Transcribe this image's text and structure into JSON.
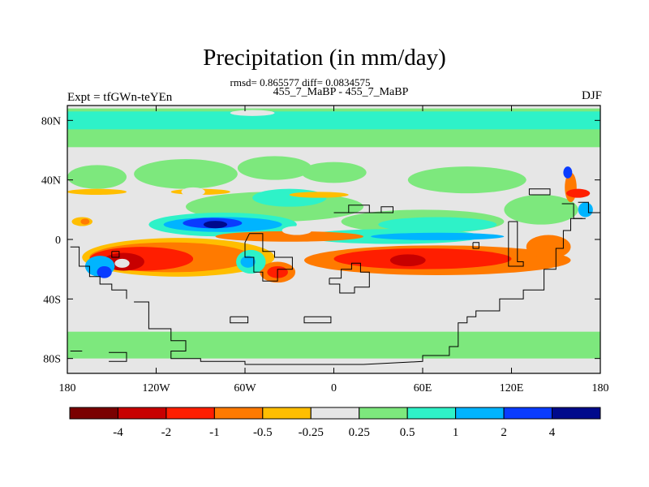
{
  "title": "Precipitation (in mm/day)",
  "stats_line": "rmsd= 0.865577 diff= 0.0834575",
  "case_line": "455_7_MaBP - 455_7_MaBP",
  "left_label": "Expt = tfGWn-teYEn",
  "right_label": "DJF",
  "chart_data": {
    "type": "heatmap",
    "title": "Precipitation (in mm/day)",
    "xlim": [
      -180,
      180
    ],
    "ylim": [
      -90,
      90
    ],
    "x_ticks": [
      {
        "value": -180,
        "label": "180"
      },
      {
        "value": -120,
        "label": "120W"
      },
      {
        "value": -60,
        "label": "60W"
      },
      {
        "value": 0,
        "label": "0"
      },
      {
        "value": 60,
        "label": "60E"
      },
      {
        "value": 120,
        "label": "120E"
      },
      {
        "value": 180,
        "label": "180"
      }
    ],
    "y_ticks": [
      {
        "value": 80,
        "label": "80N"
      },
      {
        "value": 40,
        "label": "40N"
      },
      {
        "value": 0,
        "label": "0"
      },
      {
        "value": -40,
        "label": "40S"
      },
      {
        "value": -80,
        "label": "80S"
      }
    ],
    "colorbar": {
      "levels": [
        -4,
        -2,
        -1,
        -0.5,
        -0.25,
        0.25,
        0.5,
        1,
        2,
        4
      ],
      "labels": [
        "-4",
        "-2",
        "-1",
        "-0.5",
        "-0.25",
        "0.25",
        "0.5",
        "1",
        "2",
        "4"
      ],
      "colors": [
        "#7a0000",
        "#c80000",
        "#ff1e00",
        "#ff7a00",
        "#ffbe00",
        "#e6e6e6",
        "#7de87d",
        "#2ef2c8",
        "#00b4ff",
        "#0a3cff",
        "#000a8c"
      ]
    },
    "regions": [
      {
        "class": 6,
        "shape": "band",
        "lat": [
          62,
          88
        ]
      },
      {
        "class": 7,
        "shape": "band",
        "lat": [
          74,
          86
        ]
      },
      {
        "class": 6,
        "shape": "band",
        "lat": [
          -80,
          -62
        ]
      },
      {
        "class": 6,
        "shape": "ellipse",
        "lon": -160,
        "lat": 42,
        "rlon": 20,
        "rlat": 8
      },
      {
        "class": 6,
        "shape": "ellipse",
        "lon": -100,
        "lat": 44,
        "rlon": 35,
        "rlat": 10
      },
      {
        "class": 6,
        "shape": "ellipse",
        "lon": -40,
        "lat": 48,
        "rlon": 25,
        "rlat": 8
      },
      {
        "class": 6,
        "shape": "ellipse",
        "lon": 0,
        "lat": 45,
        "rlon": 22,
        "rlat": 7
      },
      {
        "class": 6,
        "shape": "ellipse",
        "lon": 90,
        "lat": 40,
        "rlon": 40,
        "rlat": 9
      },
      {
        "class": 6,
        "shape": "ellipse",
        "lon": -40,
        "lat": 22,
        "rlon": 60,
        "rlat": 10
      },
      {
        "class": 7,
        "shape": "ellipse",
        "lon": -30,
        "lat": 28,
        "rlon": 25,
        "rlat": 6
      },
      {
        "class": 6,
        "shape": "ellipse",
        "lon": 60,
        "lat": 12,
        "rlon": 55,
        "rlat": 8
      },
      {
        "class": 7,
        "shape": "ellipse",
        "lon": 70,
        "lat": 10,
        "rlon": 40,
        "rlat": 5
      },
      {
        "class": 6,
        "shape": "ellipse",
        "lon": 140,
        "lat": 20,
        "rlon": 25,
        "rlat": 10
      },
      {
        "class": 7,
        "shape": "ellipse",
        "lon": -75,
        "lat": 10,
        "rlon": 50,
        "rlat": 8
      },
      {
        "class": 8,
        "shape": "ellipse",
        "lon": -75,
        "lat": 10,
        "rlon": 40,
        "rlat": 5
      },
      {
        "class": 9,
        "shape": "ellipse",
        "lon": -82,
        "lat": 11,
        "rlon": 20,
        "rlat": 3.5
      },
      {
        "class": 10,
        "shape": "ellipse",
        "lon": -80,
        "lat": 10,
        "rlon": 8,
        "rlat": 2.5
      },
      {
        "class": 7,
        "shape": "ellipse",
        "lon": 40,
        "lat": 2,
        "rlon": 60,
        "rlat": 5
      },
      {
        "class": 8,
        "shape": "ellipse",
        "lon": 70,
        "lat": 2,
        "rlon": 45,
        "rlat": 2.5
      },
      {
        "class": 4,
        "shape": "ellipse",
        "lon": -105,
        "lat": -12,
        "rlon": 65,
        "rlat": 13
      },
      {
        "class": 3,
        "shape": "ellipse",
        "lon": -110,
        "lat": -12,
        "rlon": 55,
        "rlat": 10
      },
      {
        "class": 2,
        "shape": "ellipse",
        "lon": -130,
        "lat": -13,
        "rlon": 35,
        "rlat": 8
      },
      {
        "class": 1,
        "shape": "ellipse",
        "lon": -142,
        "lat": -15,
        "rlon": 14,
        "rlat": 6
      },
      {
        "class": 5,
        "shape": "ellipse",
        "lon": -143,
        "lat": -16,
        "rlon": 5,
        "rlat": 3
      },
      {
        "class": 8,
        "shape": "ellipse",
        "lon": -158,
        "lat": -18,
        "rlon": 10,
        "rlat": 7
      },
      {
        "class": 9,
        "shape": "ellipse",
        "lon": -155,
        "lat": -22,
        "rlon": 5,
        "rlat": 4
      },
      {
        "class": 3,
        "shape": "ellipse",
        "lon": -30,
        "lat": 2,
        "rlon": 50,
        "rlat": 3.5
      },
      {
        "class": 3,
        "shape": "ellipse",
        "lon": -38,
        "lat": -22,
        "rlon": 12,
        "rlat": 7
      },
      {
        "class": 2,
        "shape": "ellipse",
        "lon": -38,
        "lat": -22,
        "rlon": 7,
        "rlat": 4
      },
      {
        "class": 7,
        "shape": "ellipse",
        "lon": -56,
        "lat": -15,
        "rlon": 10,
        "rlat": 8
      },
      {
        "class": 8,
        "shape": "ellipse",
        "lon": -58,
        "lat": -15,
        "rlon": 5,
        "rlat": 4
      },
      {
        "class": 3,
        "shape": "ellipse",
        "lon": 70,
        "lat": -14,
        "rlon": 90,
        "rlat": 10
      },
      {
        "class": 2,
        "shape": "ellipse",
        "lon": 60,
        "lat": -13,
        "rlon": 60,
        "rlat": 7
      },
      {
        "class": 1,
        "shape": "ellipse",
        "lon": 50,
        "lat": -14,
        "rlon": 12,
        "rlat": 4
      },
      {
        "class": 3,
        "shape": "ellipse",
        "lon": 145,
        "lat": -5,
        "rlon": 15,
        "rlat": 8
      },
      {
        "class": 3,
        "shape": "ellipse",
        "lon": 160,
        "lat": 35,
        "rlon": 4,
        "rlat": 10
      },
      {
        "class": 9,
        "shape": "ellipse",
        "lon": 158,
        "lat": 45,
        "rlon": 3,
        "rlat": 4
      },
      {
        "class": 2,
        "shape": "ellipse",
        "lon": 165,
        "lat": 31,
        "rlon": 8,
        "rlat": 3
      },
      {
        "class": 8,
        "shape": "ellipse",
        "lon": 170,
        "lat": 20,
        "rlon": 5,
        "rlat": 5
      },
      {
        "class": 4,
        "shape": "ellipse",
        "lon": -170,
        "lat": 12,
        "rlon": 7,
        "rlat": 3
      },
      {
        "class": 3,
        "shape": "ellipse",
        "lon": -168,
        "lat": 12,
        "rlon": 3,
        "rlat": 2
      },
      {
        "class": 4,
        "shape": "ellipse",
        "lon": -160,
        "lat": 32,
        "rlon": 20,
        "rlat": 2
      },
      {
        "class": 4,
        "shape": "ellipse",
        "lon": -90,
        "lat": 32,
        "rlon": 20,
        "rlat": 2
      },
      {
        "class": 4,
        "shape": "ellipse",
        "lon": -10,
        "lat": 30,
        "rlon": 20,
        "rlat": 2
      },
      {
        "class": 5,
        "shape": "ellipse",
        "lon": -95,
        "lat": 32,
        "rlon": 8,
        "rlat": 3
      },
      {
        "class": 5,
        "shape": "ellipse",
        "lon": -25,
        "lat": 6,
        "rlon": 10,
        "rlat": 3
      },
      {
        "class": 5,
        "shape": "ellipse",
        "lon": -150,
        "lat": -50,
        "rlon": 6,
        "rlat": 2
      },
      {
        "class": 5,
        "shape": "ellipse",
        "lon": -55,
        "lat": 85,
        "rlon": 15,
        "rlat": 2
      }
    ],
    "coast_paths": [
      [
        [
          -178,
          -5
        ],
        [
          -172,
          -5
        ],
        [
          -172,
          -18
        ],
        [
          -165,
          -18
        ],
        [
          -165,
          -25
        ],
        [
          -158,
          -25
        ],
        [
          -158,
          -30
        ],
        [
          -150,
          -30
        ],
        [
          -150,
          -34
        ],
        [
          -140,
          -34
        ],
        [
          -140,
          -40
        ]
      ],
      [
        [
          -150,
          -8
        ],
        [
          -145,
          -8
        ],
        [
          -145,
          -12
        ],
        [
          -150,
          -12
        ],
        [
          -150,
          -8
        ]
      ],
      [
        [
          -135,
          -42
        ],
        [
          -125,
          -42
        ],
        [
          -125,
          -60
        ],
        [
          -110,
          -60
        ],
        [
          -110,
          -68
        ],
        [
          -100,
          -68
        ],
        [
          -100,
          -75
        ],
        [
          -110,
          -75
        ],
        [
          -110,
          -80
        ],
        [
          -90,
          -80
        ],
        [
          -90,
          -82
        ],
        [
          -60,
          -82
        ],
        [
          -60,
          -84
        ],
        [
          0,
          -84
        ],
        [
          20,
          -84
        ],
        [
          60,
          -82
        ],
        [
          60,
          -78
        ],
        [
          78,
          -78
        ],
        [
          78,
          -72
        ],
        [
          84,
          -72
        ],
        [
          84,
          -56
        ],
        [
          90,
          -56
        ],
        [
          90,
          -52
        ],
        [
          96,
          -52
        ],
        [
          96,
          -48
        ],
        [
          112,
          -48
        ],
        [
          112,
          -40
        ],
        [
          128,
          -40
        ],
        [
          128,
          -34
        ],
        [
          142,
          -34
        ],
        [
          142,
          -20
        ],
        [
          150,
          -20
        ],
        [
          150,
          -6
        ],
        [
          155,
          -6
        ],
        [
          155,
          6
        ],
        [
          160,
          6
        ],
        [
          160,
          14
        ],
        [
          170,
          14
        ]
      ],
      [
        [
          -57,
          4
        ],
        [
          -48,
          4
        ],
        [
          -48,
          -8
        ],
        [
          -40,
          -8
        ],
        [
          -40,
          -12
        ],
        [
          -28,
          -12
        ],
        [
          -28,
          -20
        ],
        [
          -38,
          -20
        ],
        [
          -38,
          -28
        ],
        [
          -48,
          -28
        ],
        [
          -48,
          -22
        ],
        [
          -54,
          -22
        ],
        [
          -54,
          -12
        ],
        [
          -60,
          -12
        ],
        [
          -60,
          -2
        ],
        [
          -57,
          4
        ]
      ],
      [
        [
          -3,
          -26
        ],
        [
          5,
          -26
        ],
        [
          5,
          -20
        ],
        [
          12,
          -20
        ],
        [
          12,
          -16
        ],
        [
          18,
          -16
        ],
        [
          18,
          -22
        ],
        [
          24,
          -22
        ],
        [
          24,
          -32
        ],
        [
          14,
          -32
        ],
        [
          14,
          -36
        ],
        [
          4,
          -36
        ],
        [
          4,
          -30
        ],
        [
          -3,
          -30
        ],
        [
          -3,
          -26
        ]
      ],
      [
        [
          0,
          18
        ],
        [
          10,
          18
        ],
        [
          10,
          23
        ],
        [
          24,
          23
        ],
        [
          24,
          18
        ],
        [
          32,
          18
        ],
        [
          32,
          22
        ],
        [
          40,
          22
        ],
        [
          40,
          18
        ],
        [
          0,
          18
        ]
      ],
      [
        [
          -70,
          -52
        ],
        [
          -58,
          -52
        ],
        [
          -58,
          -56
        ],
        [
          -70,
          -56
        ],
        [
          -70,
          -52
        ]
      ],
      [
        [
          -20,
          -52
        ],
        [
          -2,
          -52
        ],
        [
          -2,
          -56
        ],
        [
          -20,
          -56
        ],
        [
          -20,
          -52
        ]
      ],
      [
        [
          -152,
          -76
        ],
        [
          -140,
          -76
        ],
        [
          -140,
          -82
        ],
        [
          -152,
          -82
        ]
      ],
      [
        [
          132,
          30
        ],
        [
          146,
          30
        ],
        [
          146,
          34
        ],
        [
          132,
          34
        ],
        [
          132,
          30
        ]
      ],
      [
        [
          154,
          24
        ],
        [
          162,
          24
        ],
        [
          162,
          14
        ],
        [
          168,
          14
        ]
      ],
      [
        [
          165,
          25
        ],
        [
          172,
          25
        ],
        [
          172,
          18
        ],
        [
          180,
          18
        ]
      ],
      [
        [
          118,
          12
        ],
        [
          124,
          12
        ],
        [
          124,
          -15
        ],
        [
          128,
          -15
        ],
        [
          128,
          -18
        ],
        [
          118,
          -18
        ],
        [
          118,
          12
        ]
      ],
      [
        [
          -178,
          -75
        ],
        [
          -170,
          -75
        ]
      ],
      [
        [
          94,
          -2
        ],
        [
          98,
          -2
        ],
        [
          98,
          -6
        ],
        [
          94,
          -6
        ],
        [
          94,
          -2
        ]
      ]
    ]
  }
}
